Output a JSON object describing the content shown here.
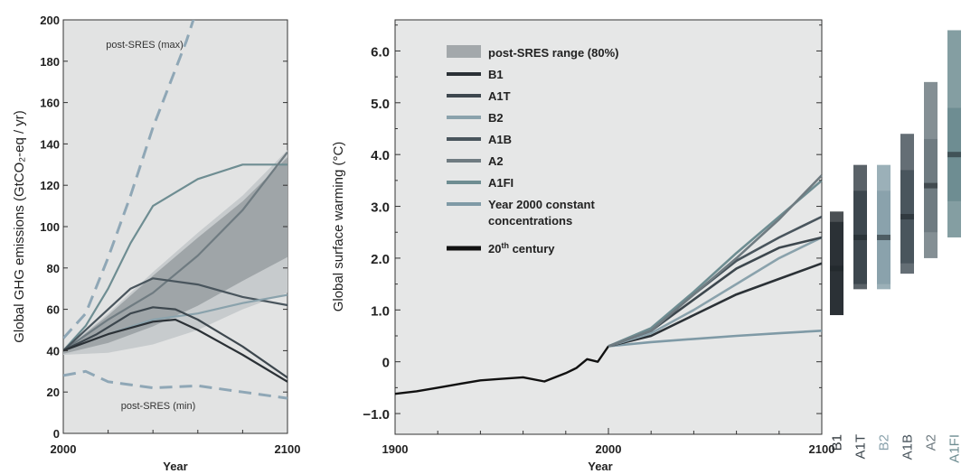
{
  "chart_data": [
    {
      "type": "line",
      "title": "",
      "xlabel": "Year",
      "ylabel": "Global GHG emissions (GtCO₂-eq / yr)",
      "xlim": [
        2000,
        2100
      ],
      "ylim": [
        0,
        200
      ],
      "x_ticks": [
        2000,
        2100
      ],
      "y_ticks": [
        0,
        20,
        40,
        60,
        80,
        100,
        120,
        140,
        160,
        180,
        200
      ],
      "grid": false,
      "annotations": [
        "post-SRES (max)",
        "post-SRES (min)"
      ],
      "range_band": {
        "x": [
          2000,
          2020,
          2040,
          2060,
          2080,
          2100
        ],
        "lower": [
          38,
          39,
          43,
          50,
          60,
          68
        ],
        "upper": [
          40,
          58,
          78,
          97,
          115,
          137
        ]
      },
      "series": [
        {
          "name": "post-SRES (max)",
          "style": "dashed",
          "color": "#8fa7b6",
          "x": [
            2000,
            2010,
            2020,
            2030,
            2040,
            2055,
            2070
          ],
          "y": [
            46,
            58,
            85,
            115,
            148,
            190,
            240
          ]
        },
        {
          "name": "post-SRES (min)",
          "style": "dashed",
          "color": "#8fa7b6",
          "x": [
            2000,
            2010,
            2020,
            2040,
            2060,
            2080,
            2100
          ],
          "y": [
            28,
            30,
            25,
            22,
            23,
            20,
            17
          ]
        },
        {
          "name": "A1FI",
          "color": "#6e8d92",
          "x": [
            2000,
            2010,
            2020,
            2030,
            2040,
            2060,
            2080,
            2100
          ],
          "y": [
            40,
            52,
            70,
            92,
            110,
            123,
            130,
            130
          ]
        },
        {
          "name": "A2",
          "color": "#6f7b81",
          "x": [
            2000,
            2020,
            2040,
            2060,
            2080,
            2100
          ],
          "y": [
            40,
            55,
            68,
            86,
            108,
            136
          ]
        },
        {
          "name": "A1B",
          "color": "#49555d",
          "x": [
            2000,
            2020,
            2030,
            2040,
            2060,
            2080,
            2100
          ],
          "y": [
            40,
            60,
            70,
            75,
            72,
            66,
            62
          ]
        },
        {
          "name": "B2",
          "color": "#8aa2ac",
          "x": [
            2000,
            2020,
            2040,
            2060,
            2080,
            2100
          ],
          "y": [
            40,
            48,
            55,
            58,
            63,
            67
          ]
        },
        {
          "name": "A1T",
          "color": "#3d474e",
          "x": [
            2000,
            2015,
            2030,
            2040,
            2050,
            2060,
            2080,
            2100
          ],
          "y": [
            40,
            48,
            58,
            61,
            60,
            55,
            42,
            27
          ]
        },
        {
          "name": "B1",
          "color": "#2b3136",
          "x": [
            2000,
            2020,
            2040,
            2050,
            2060,
            2080,
            2100
          ],
          "y": [
            40,
            48,
            54,
            55,
            50,
            38,
            25
          ]
        }
      ]
    },
    {
      "type": "line",
      "title": "",
      "xlabel": "Year",
      "ylabel": "Global surface warming (°C)",
      "xlim": [
        1900,
        2100
      ],
      "ylim": [
        -1.4,
        6.6
      ],
      "x_ticks": [
        1900,
        2000,
        2100
      ],
      "y_ticks": [
        -1.0,
        0,
        1.0,
        2.0,
        3.0,
        4.0,
        5.0,
        6.0
      ],
      "y_tick_labels": [
        "-1.0",
        "0",
        "1.0",
        "2.0",
        "3.0",
        "4.0",
        "5.0",
        "6.0"
      ],
      "grid": false,
      "legend_position": "top-left",
      "legend": [
        {
          "label": "post-SRES range (80%)",
          "kind": "band",
          "color": "#a3a8ab"
        },
        {
          "label": "B1",
          "kind": "line",
          "color": "#2b3136"
        },
        {
          "label": "A1T",
          "kind": "line",
          "color": "#3d474e"
        },
        {
          "label": "B2",
          "kind": "line",
          "color": "#8aa2ac"
        },
        {
          "label": "A1B",
          "kind": "line",
          "color": "#49555d"
        },
        {
          "label": "A2",
          "kind": "line",
          "color": "#6f7b81"
        },
        {
          "label": "A1FI",
          "kind": "line",
          "color": "#6e8d92"
        },
        {
          "label": "Year 2000 constant concentrations",
          "lines": [
            "Year 2000 constant",
            "concentrations"
          ],
          "kind": "line",
          "color": "#7f9aa6"
        },
        {
          "label": "20th century",
          "lines": [
            "20th century"
          ],
          "kind": "line",
          "color": "#111111"
        }
      ],
      "series": [
        {
          "name": "20th century",
          "color": "#111111",
          "x": [
            1900,
            1910,
            1920,
            1930,
            1940,
            1950,
            1960,
            1970,
            1980,
            1985,
            1990,
            1995,
            2000
          ],
          "y": [
            -0.62,
            -0.57,
            -0.5,
            -0.43,
            -0.36,
            -0.33,
            -0.3,
            -0.38,
            -0.22,
            -0.12,
            0.05,
            0.0,
            0.3
          ]
        },
        {
          "name": "Year 2000 constant concentrations",
          "color": "#7f9aa6",
          "x": [
            2000,
            2020,
            2040,
            2060,
            2080,
            2100
          ],
          "y": [
            0.3,
            0.38,
            0.44,
            0.5,
            0.55,
            0.6
          ]
        },
        {
          "name": "B1",
          "color": "#2b3136",
          "x": [
            2000,
            2020,
            2040,
            2060,
            2080,
            2100
          ],
          "y": [
            0.3,
            0.5,
            0.9,
            1.3,
            1.6,
            1.9
          ]
        },
        {
          "name": "B2",
          "color": "#8aa2ac",
          "x": [
            2000,
            2020,
            2040,
            2060,
            2080,
            2100
          ],
          "y": [
            0.3,
            0.55,
            1.0,
            1.5,
            2.0,
            2.4
          ]
        },
        {
          "name": "A1T",
          "color": "#3d474e",
          "x": [
            2000,
            2020,
            2040,
            2060,
            2080,
            2100
          ],
          "y": [
            0.3,
            0.6,
            1.2,
            1.8,
            2.2,
            2.4
          ]
        },
        {
          "name": "A1B",
          "color": "#49555d",
          "x": [
            2000,
            2020,
            2040,
            2060,
            2080,
            2100
          ],
          "y": [
            0.3,
            0.6,
            1.3,
            1.95,
            2.4,
            2.8
          ]
        },
        {
          "name": "A1FI",
          "color": "#6e8d92",
          "x": [
            2000,
            2020,
            2040,
            2060,
            2080,
            2100
          ],
          "y": [
            0.3,
            0.65,
            1.35,
            2.1,
            2.8,
            3.5
          ]
        },
        {
          "name": "A2",
          "color": "#6f7b81",
          "x": [
            2000,
            2020,
            2040,
            2060,
            2080,
            2100
          ],
          "y": [
            0.3,
            0.6,
            1.3,
            2.0,
            2.75,
            3.6
          ]
        }
      ]
    },
    {
      "type": "bar",
      "title": "",
      "categories": [
        "B1",
        "A1T",
        "B2",
        "A1B",
        "A2",
        "A1FI"
      ],
      "ranges": [
        {
          "low": 1.1,
          "high": 2.9,
          "best": 1.8,
          "color": "#2b3136"
        },
        {
          "low": 1.4,
          "high": 3.8,
          "best": 2.4,
          "color": "#3d474e"
        },
        {
          "low": 1.4,
          "high": 3.8,
          "best": 2.4,
          "color": "#8aa2ac"
        },
        {
          "low": 1.7,
          "high": 4.4,
          "best": 2.8,
          "color": "#49555d"
        },
        {
          "low": 2.0,
          "high": 5.4,
          "best": 3.4,
          "color": "#6f7b81"
        },
        {
          "low": 2.4,
          "high": 6.4,
          "best": 4.0,
          "color": "#6e8d92"
        }
      ]
    }
  ]
}
